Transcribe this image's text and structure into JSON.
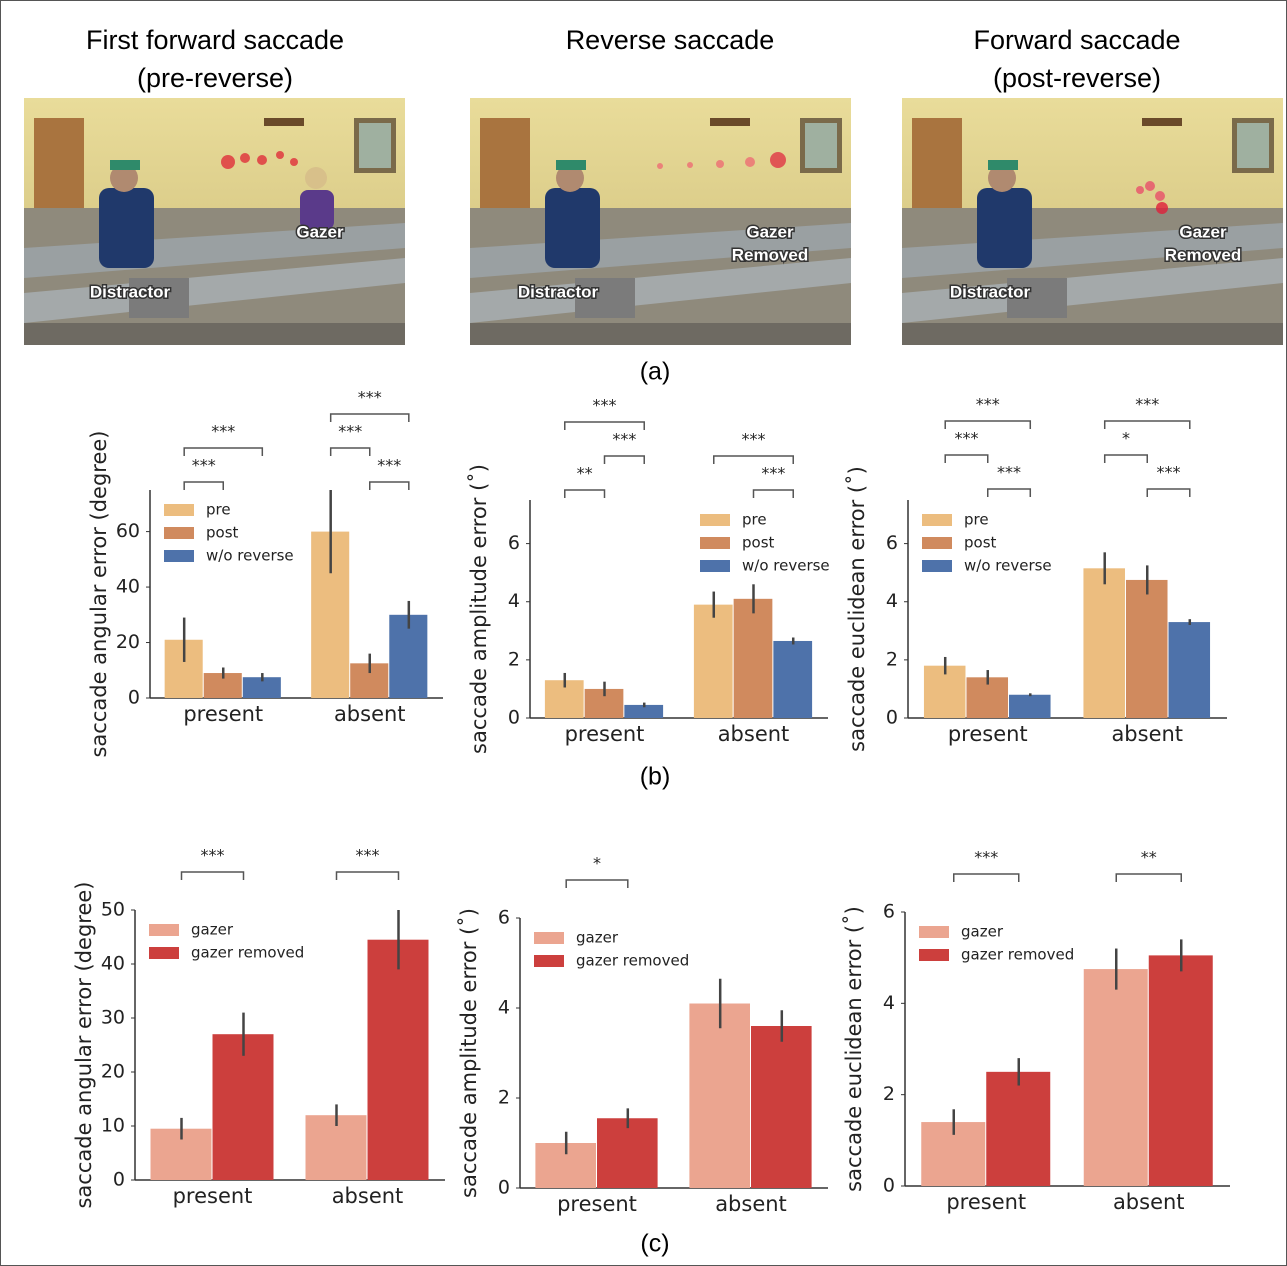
{
  "photos": [
    {
      "title_lines": [
        "First forward saccade",
        "(pre-reverse)"
      ],
      "gazer_label_lines": [
        "Gazer"
      ],
      "distractor_label": "Distractor"
    },
    {
      "title_lines": [
        "Reverse saccade"
      ],
      "gazer_label_lines": [
        "Gazer",
        "Removed"
      ],
      "distractor_label": "Distractor"
    },
    {
      "title_lines": [
        "Forward saccade",
        "(post-reverse)"
      ],
      "gazer_label_lines": [
        "Gazer",
        "Removed"
      ],
      "distractor_label": "Distractor"
    }
  ],
  "panel_labels": [
    "(a)",
    "(b)",
    "(c)"
  ],
  "chart_data": [
    {
      "type": "bar",
      "ylabel": "saccade angular error (degree)",
      "categories": [
        "present",
        "absent"
      ],
      "series": [
        {
          "name": "pre",
          "color": "#ecbd7f",
          "values": [
            21,
            60
          ],
          "errors": [
            8,
            15
          ]
        },
        {
          "name": "post",
          "color": "#d08a5e",
          "values": [
            9,
            12.5
          ],
          "errors": [
            2,
            3.5
          ]
        },
        {
          "name": "w/o reverse",
          "color": "#4e72aa",
          "values": [
            7.5,
            30
          ],
          "errors": [
            1.5,
            5
          ]
        }
      ],
      "ylim": [
        0,
        75
      ],
      "yticks": [
        0,
        20,
        40,
        60
      ],
      "legend": "upper left",
      "annotations": [
        {
          "text": "***",
          "category": 0,
          "series": [
            0,
            1
          ]
        },
        {
          "text": "***",
          "category": 0,
          "series": [
            0,
            2
          ]
        },
        {
          "text": "***",
          "category": 1,
          "series": [
            1,
            2
          ]
        },
        {
          "text": "***",
          "category": 1,
          "series": [
            0,
            1
          ]
        },
        {
          "text": "***",
          "category": 1,
          "series": [
            0,
            2
          ]
        }
      ]
    },
    {
      "type": "bar",
      "ylabel": "saccade amplitude error (˚)",
      "categories": [
        "present",
        "absent"
      ],
      "series": [
        {
          "name": "pre",
          "color": "#ecbd7f",
          "values": [
            1.3,
            3.9
          ],
          "errors": [
            0.25,
            0.45
          ]
        },
        {
          "name": "post",
          "color": "#d08a5e",
          "values": [
            1.0,
            4.1
          ],
          "errors": [
            0.25,
            0.5
          ]
        },
        {
          "name": "w/o reverse",
          "color": "#4e72aa",
          "values": [
            0.45,
            2.65
          ],
          "errors": [
            0.08,
            0.12
          ]
        }
      ],
      "ylim": [
        0,
        7.5
      ],
      "yticks": [
        0,
        2,
        4,
        6
      ],
      "legend": "upper right",
      "annotations": [
        {
          "text": "**",
          "category": 0,
          "series": [
            0,
            1
          ]
        },
        {
          "text": "***",
          "category": 0,
          "series": [
            1,
            2
          ]
        },
        {
          "text": "***",
          "category": 0,
          "series": [
            0,
            2
          ]
        },
        {
          "text": "***",
          "category": 1,
          "series": [
            1,
            2
          ]
        },
        {
          "text": "***",
          "category": 1,
          "series": [
            0,
            2
          ]
        }
      ]
    },
    {
      "type": "bar",
      "ylabel": "saccade euclidean error (˚)",
      "categories": [
        "present",
        "absent"
      ],
      "series": [
        {
          "name": "pre",
          "color": "#ecbd7f",
          "values": [
            1.8,
            5.15
          ],
          "errors": [
            0.3,
            0.55
          ]
        },
        {
          "name": "post",
          "color": "#d08a5e",
          "values": [
            1.4,
            4.75
          ],
          "errors": [
            0.25,
            0.5
          ]
        },
        {
          "name": "w/o reverse",
          "color": "#4e72aa",
          "values": [
            0.8,
            3.3
          ],
          "errors": [
            0.05,
            0.1
          ]
        }
      ],
      "ylim": [
        0,
        7.5
      ],
      "yticks": [
        0,
        2,
        4,
        6
      ],
      "legend": "upper left",
      "annotations": [
        {
          "text": "***",
          "category": 0,
          "series": [
            1,
            2
          ]
        },
        {
          "text": "***",
          "category": 0,
          "series": [
            0,
            1
          ]
        },
        {
          "text": "***",
          "category": 0,
          "series": [
            0,
            2
          ]
        },
        {
          "text": "***",
          "category": 1,
          "series": [
            1,
            2
          ]
        },
        {
          "text": "*",
          "category": 1,
          "series": [
            0,
            1
          ]
        },
        {
          "text": "***",
          "category": 1,
          "series": [
            0,
            2
          ]
        }
      ]
    },
    {
      "type": "bar",
      "ylabel": "saccade angular error (degree)",
      "categories": [
        "present",
        "absent"
      ],
      "series": [
        {
          "name": "gazer",
          "color": "#eba590",
          "values": [
            9.5,
            12
          ],
          "errors": [
            2,
            2
          ]
        },
        {
          "name": "gazer removed",
          "color": "#cc3f3d",
          "values": [
            27,
            44.5
          ],
          "errors": [
            4,
            5.5
          ]
        }
      ],
      "ylim": [
        0,
        50
      ],
      "yticks": [
        0,
        10,
        20,
        30,
        40,
        50
      ],
      "legend": "upper left",
      "annotations": [
        {
          "text": "***",
          "category": 0,
          "series": [
            0,
            1
          ]
        },
        {
          "text": "***",
          "category": 1,
          "series": [
            0,
            1
          ]
        }
      ]
    },
    {
      "type": "bar",
      "ylabel": "saccade amplitude error (˚)",
      "categories": [
        "present",
        "absent"
      ],
      "series": [
        {
          "name": "gazer",
          "color": "#eba590",
          "values": [
            1.0,
            4.1
          ],
          "errors": [
            0.25,
            0.55
          ]
        },
        {
          "name": "gazer removed",
          "color": "#cc3f3d",
          "values": [
            1.55,
            3.6
          ],
          "errors": [
            0.22,
            0.35
          ]
        }
      ],
      "ylim": [
        0,
        6
      ],
      "yticks": [
        0,
        2,
        4,
        6
      ],
      "legend": "upper left",
      "annotations": [
        {
          "text": "*",
          "category": 0,
          "series": [
            0,
            1
          ]
        }
      ]
    },
    {
      "type": "bar",
      "ylabel": "saccade euclidean error (˚)",
      "categories": [
        "present",
        "absent"
      ],
      "series": [
        {
          "name": "gazer",
          "color": "#eba590",
          "values": [
            1.4,
            4.75
          ],
          "errors": [
            0.28,
            0.45
          ]
        },
        {
          "name": "gazer removed",
          "color": "#cc3f3d",
          "values": [
            2.5,
            5.05
          ],
          "errors": [
            0.3,
            0.35
          ]
        }
      ],
      "ylim": [
        0,
        6
      ],
      "yticks": [
        0,
        2,
        4,
        6
      ],
      "legend": "upper left",
      "annotations": [
        {
          "text": "***",
          "category": 0,
          "series": [
            0,
            1
          ]
        },
        {
          "text": "**",
          "category": 1,
          "series": [
            0,
            1
          ]
        }
      ]
    }
  ]
}
